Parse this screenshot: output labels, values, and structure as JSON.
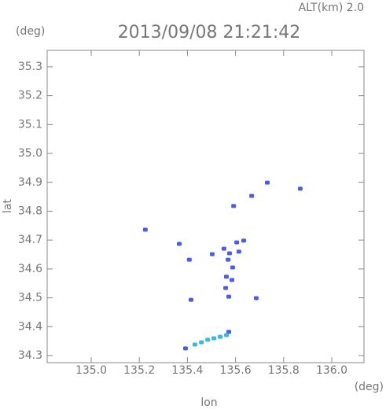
{
  "chart_data": {
    "type": "scatter",
    "title": "2013/09/08 21:21:42",
    "subtitle": "ALT(km) 2.0",
    "y_unit": "(deg)",
    "x_unit": "(deg)",
    "xlabel": "lon",
    "ylabel": "lat",
    "xlim": [
      134.817,
      136.134
    ],
    "ylim": [
      34.2755,
      35.357
    ],
    "xticks": [
      {
        "value": 135.0,
        "label": "135.0"
      },
      135.2,
      135.4,
      135.6,
      135.8,
      {
        "value": 136.0,
        "label": "136.0"
      }
    ],
    "yticks": [
      35.3,
      35.2,
      35.1,
      {
        "value": 35.0,
        "label": "35.0"
      },
      34.9,
      34.8,
      34.7,
      34.6,
      34.5,
      34.4,
      34.3
    ],
    "series": [
      {
        "color": "#4a5cf0",
        "x": [
          135.225,
          135.366,
          135.408,
          135.415,
          135.503,
          135.552,
          135.569,
          135.605,
          135.575,
          135.588,
          135.562,
          135.585,
          135.559,
          135.572,
          135.634,
          135.614,
          135.686,
          135.592,
          135.667,
          135.732,
          135.869,
          135.572,
          135.392
        ],
        "values": [
          34.736,
          34.687,
          34.632,
          34.493,
          34.651,
          34.67,
          34.632,
          34.692,
          34.654,
          34.605,
          34.573,
          34.562,
          34.534,
          34.504,
          34.698,
          34.66,
          34.499,
          34.818,
          34.853,
          34.899,
          34.878,
          34.382,
          34.325
        ]
      },
      {
        "color": "#38b8e8",
        "x": [
          135.431,
          135.458,
          135.484,
          135.51,
          135.536,
          135.562
        ],
        "values": [
          34.338,
          34.346,
          34.355,
          34.36,
          34.365,
          34.371
        ]
      }
    ]
  }
}
